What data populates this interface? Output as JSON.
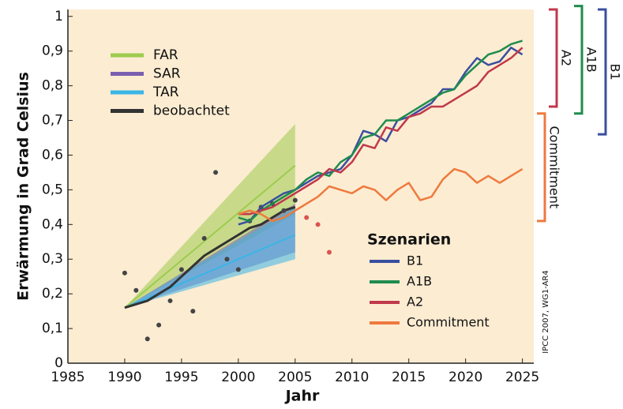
{
  "chart_data": {
    "type": "line",
    "xlabel": "Jahr",
    "ylabel": "Erwärmung in Grad Celsius",
    "legend_title": "Szenarien",
    "credit": "IPCC 2007, WG1-AR4",
    "xlim": [
      1985,
      2026
    ],
    "ylim": [
      0,
      1.02
    ],
    "xticks": [
      1985,
      1990,
      1995,
      2000,
      2005,
      2010,
      2015,
      2020,
      2025
    ],
    "yticks": [
      0,
      {
        "value": 0.1,
        "label": "0,1"
      },
      {
        "value": 0.2,
        "label": "0,2"
      },
      {
        "value": 0.3,
        "label": "0,3"
      },
      {
        "value": 0.4,
        "label": "0,4"
      },
      {
        "value": 0.5,
        "label": "0,5"
      },
      {
        "value": 0.6,
        "label": "0,6"
      },
      {
        "value": 0.7,
        "label": "0,7"
      },
      {
        "value": 0.8,
        "label": "0,8"
      },
      {
        "value": 0.9,
        "label": "0,9"
      },
      1
    ],
    "bands": [
      {
        "name": "FAR",
        "color": "#9ccc4e",
        "x": [
          1990,
          2005
        ],
        "lower": [
          0.16,
          0.43
        ],
        "upper": [
          0.16,
          0.69
        ],
        "center": [
          0.16,
          0.57
        ]
      },
      {
        "name": "SAR",
        "color": "#7a5fb0",
        "x": [
          1990,
          2005
        ],
        "lower": [
          0.16,
          0.32
        ],
        "upper": [
          0.16,
          0.46
        ]
      },
      {
        "name": "TAR",
        "color": "#3ab5e6",
        "x": [
          1990,
          2005
        ],
        "lower": [
          0.16,
          0.3
        ],
        "upper": [
          0.16,
          0.45
        ],
        "center": [
          0.16,
          0.37
        ]
      }
    ],
    "observed": {
      "name": "beobachtet",
      "color": "#333333",
      "x": [
        1990,
        1991,
        1992,
        1993,
        1994,
        1995,
        1996,
        1997,
        1998,
        1999,
        2000,
        2001,
        2002,
        2003,
        2004,
        2005
      ],
      "values": [
        0.16,
        0.17,
        0.18,
        0.2,
        0.22,
        0.25,
        0.28,
        0.31,
        0.33,
        0.35,
        0.37,
        0.39,
        0.4,
        0.42,
        0.44,
        0.45
      ]
    },
    "points": {
      "x": [
        1990,
        1991,
        1992,
        1993,
        1994,
        1995,
        1996,
        1997,
        1998,
        1999,
        2000,
        2001,
        2002,
        2003,
        2004,
        2005,
        2006,
        2007,
        2008
      ],
      "values": [
        0.26,
        0.21,
        0.07,
        0.11,
        0.18,
        0.27,
        0.15,
        0.36,
        0.55,
        0.3,
        0.27,
        0.41,
        0.45,
        0.46,
        0.44,
        0.47,
        0.42,
        0.4,
        0.32
      ],
      "colors": [
        "#444444",
        "#444444",
        "#444444",
        "#444444",
        "#444444",
        "#444444",
        "#444444",
        "#444444",
        "#444444",
        "#444444",
        "#444444",
        "#444444",
        "#444444",
        "#444444",
        "#444444",
        "#444444",
        "#d9534f",
        "#d9534f",
        "#d9534f"
      ]
    },
    "x": [
      2000,
      2001,
      2002,
      2003,
      2004,
      2005,
      2006,
      2007,
      2008,
      2009,
      2010,
      2011,
      2012,
      2013,
      2014,
      2015,
      2016,
      2017,
      2018,
      2019,
      2020,
      2021,
      2022,
      2023,
      2024,
      2025
    ],
    "series": [
      {
        "name": "B1",
        "color": "#3a4fa0",
        "range": [
          0.66,
          1.02
        ],
        "values": [
          0.4,
          0.41,
          0.45,
          0.47,
          0.49,
          0.5,
          0.52,
          0.54,
          0.55,
          0.56,
          0.6,
          0.67,
          0.66,
          0.64,
          0.7,
          0.71,
          0.73,
          0.75,
          0.79,
          0.79,
          0.84,
          0.88,
          0.86,
          0.87,
          0.91,
          0.89
        ]
      },
      {
        "name": "A1B",
        "color": "#1f8c4e",
        "range": [
          0.72,
          1.03
        ],
        "values": [
          0.42,
          0.41,
          0.44,
          0.46,
          0.48,
          0.5,
          0.53,
          0.55,
          0.54,
          0.58,
          0.6,
          0.65,
          0.66,
          0.7,
          0.7,
          0.72,
          0.74,
          0.76,
          0.78,
          0.79,
          0.83,
          0.86,
          0.89,
          0.9,
          0.92,
          0.93
        ]
      },
      {
        "name": "A2",
        "color": "#c0394b",
        "range": [
          0.74,
          1.02
        ],
        "values": [
          0.43,
          0.43,
          0.44,
          0.45,
          0.47,
          0.49,
          0.51,
          0.53,
          0.56,
          0.55,
          0.58,
          0.63,
          0.62,
          0.68,
          0.67,
          0.71,
          0.72,
          0.74,
          0.74,
          0.76,
          0.78,
          0.8,
          0.84,
          0.86,
          0.88,
          0.91
        ]
      },
      {
        "name": "Commitment",
        "color": "#ee7a3e",
        "range": [
          0.41,
          0.72
        ],
        "values": [
          0.43,
          0.44,
          0.43,
          0.41,
          0.42,
          0.44,
          0.46,
          0.48,
          0.51,
          0.5,
          0.49,
          0.51,
          0.5,
          0.47,
          0.5,
          0.52,
          0.47,
          0.48,
          0.53,
          0.56,
          0.55,
          0.52,
          0.54,
          0.52,
          0.54,
          0.56
        ]
      }
    ]
  }
}
